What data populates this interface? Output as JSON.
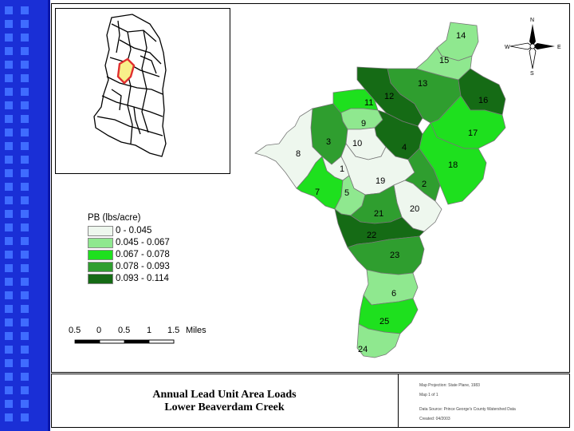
{
  "legend": {
    "title": "PB (lbs/acre)",
    "classes": [
      {
        "label": "0 - 0.045",
        "color": "#eef7ee"
      },
      {
        "label": "0.045 - 0.067",
        "color": "#8fe88f"
      },
      {
        "label": "0.067 - 0.078",
        "color": "#1ee01e"
      },
      {
        "label": "0.078 - 0.093",
        "color": "#2f9e2f"
      },
      {
        "label": "0.093 - 0.114",
        "color": "#156b15"
      }
    ]
  },
  "scale_bar": {
    "ticks": [
      "0.5",
      "0",
      "0.5",
      "1",
      "1.5"
    ],
    "unit": "Miles"
  },
  "title": {
    "line1": "Annual Lead Unit Area Loads",
    "line2": "Lower Beaverdam Creek"
  },
  "metadata": {
    "line1": "Map Projection: State Plane, 1983",
    "line2": "Map 1 of 1",
    "line3": "Data Source: Prince George's County Watershed Data",
    "line4": "Created: 04/2003"
  },
  "north_arrow": {
    "n": "N",
    "s": "S",
    "e": "E",
    "w": "W"
  },
  "subwatersheds": [
    {
      "id": "1",
      "label": "1",
      "class": 0
    },
    {
      "id": "2",
      "label": "2",
      "class": 3
    },
    {
      "id": "3",
      "label": "3",
      "class": 3
    },
    {
      "id": "4",
      "label": "4",
      "class": 4
    },
    {
      "id": "5",
      "label": "5",
      "class": 1
    },
    {
      "id": "6",
      "label": "6",
      "class": 1
    },
    {
      "id": "7",
      "label": "7",
      "class": 2
    },
    {
      "id": "8",
      "label": "8",
      "class": 0
    },
    {
      "id": "9",
      "label": "9",
      "class": 1
    },
    {
      "id": "10",
      "label": "10",
      "class": 0
    },
    {
      "id": "11",
      "label": "11",
      "class": 2
    },
    {
      "id": "12",
      "label": "12",
      "class": 4
    },
    {
      "id": "13",
      "label": "13",
      "class": 3
    },
    {
      "id": "14",
      "label": "14",
      "class": 1
    },
    {
      "id": "15",
      "label": "15",
      "class": 1
    },
    {
      "id": "16",
      "label": "16",
      "class": 4
    },
    {
      "id": "17",
      "label": "17",
      "class": 2
    },
    {
      "id": "18",
      "label": "18",
      "class": 2
    },
    {
      "id": "19",
      "label": "19",
      "class": 0
    },
    {
      "id": "20",
      "label": "20",
      "class": 0
    },
    {
      "id": "21",
      "label": "21",
      "class": 3
    },
    {
      "id": "22",
      "label": "22",
      "class": 4
    },
    {
      "id": "23",
      "label": "23",
      "class": 3
    },
    {
      "id": "24",
      "label": "24",
      "class": 1
    },
    {
      "id": "25",
      "label": "25",
      "class": 2
    }
  ]
}
